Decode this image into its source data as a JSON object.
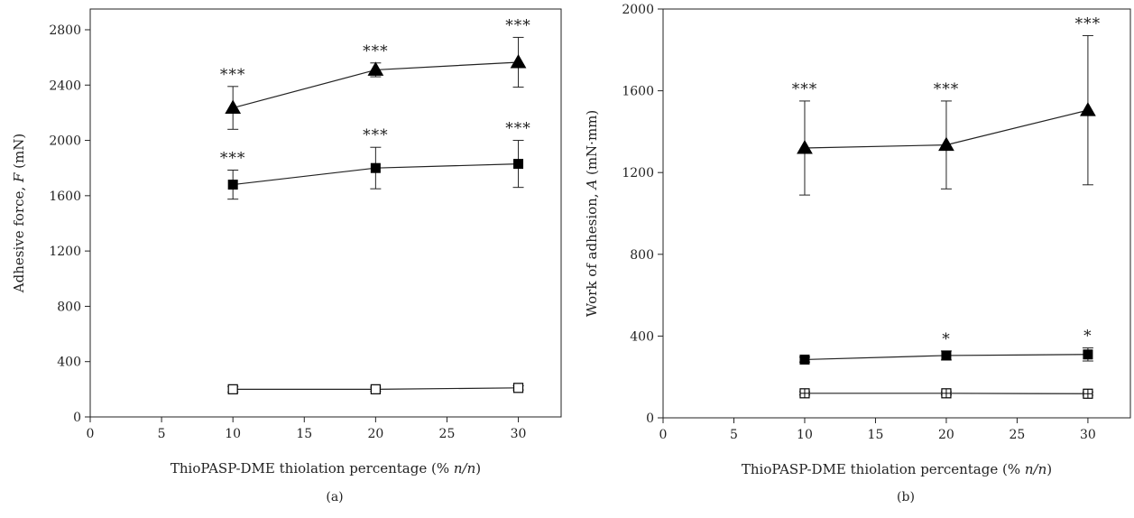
{
  "chart_data": [
    {
      "type": "line",
      "panel_label": "(a)",
      "xlabel_parts": [
        "ThioPASP-DME thiolation percentage (% ",
        "n/n",
        ")"
      ],
      "ylabel_parts": [
        "Adhesive force, ",
        "F",
        " (mN)"
      ],
      "xlim": [
        0,
        33
      ],
      "ylim": [
        0,
        2950
      ],
      "xticks": [
        0,
        5,
        10,
        15,
        20,
        25,
        30
      ],
      "yticks": [
        0,
        400,
        800,
        1200,
        1600,
        2000,
        2400,
        2800
      ],
      "x": [
        10,
        20,
        30
      ],
      "grid": false,
      "series": [
        {
          "marker": "triangle-filled",
          "values": [
            2235,
            2510,
            2565
          ],
          "errors": [
            155,
            50,
            180
          ],
          "annotations": [
            "***",
            "***",
            "***"
          ]
        },
        {
          "marker": "square-filled",
          "values": [
            1680,
            1800,
            1830
          ],
          "errors": [
            105,
            150,
            170
          ],
          "annotations": [
            "***",
            "***",
            "***"
          ]
        },
        {
          "marker": "square-open",
          "values": [
            200,
            200,
            210
          ],
          "errors": [
            20,
            15,
            15
          ],
          "annotations": [
            "",
            "",
            ""
          ]
        }
      ]
    },
    {
      "type": "line",
      "panel_label": "(b)",
      "xlabel_parts": [
        "ThioPASP-DME thiolation percentage (% ",
        "n/n",
        ")"
      ],
      "ylabel_parts": [
        "Work of adhesion, ",
        "A",
        " (mN·mm)"
      ],
      "xlim": [
        0,
        33
      ],
      "ylim": [
        0,
        2000
      ],
      "xticks": [
        0,
        5,
        10,
        15,
        20,
        25,
        30
      ],
      "yticks": [
        0,
        400,
        800,
        1200,
        1600,
        2000
      ],
      "x": [
        10,
        20,
        30
      ],
      "grid": false,
      "series": [
        {
          "marker": "triangle-filled",
          "values": [
            1320,
            1335,
            1505
          ],
          "errors": [
            230,
            215,
            365
          ],
          "annotations": [
            "***",
            "***",
            "***"
          ]
        },
        {
          "marker": "square-filled",
          "values": [
            285,
            305,
            310
          ],
          "errors": [
            12,
            22,
            32
          ],
          "annotations": [
            "",
            "*",
            "*"
          ]
        },
        {
          "marker": "square-crossed",
          "values": [
            120,
            120,
            118
          ],
          "errors": [
            8,
            8,
            8
          ],
          "annotations": [
            "",
            "",
            ""
          ]
        }
      ]
    }
  ]
}
